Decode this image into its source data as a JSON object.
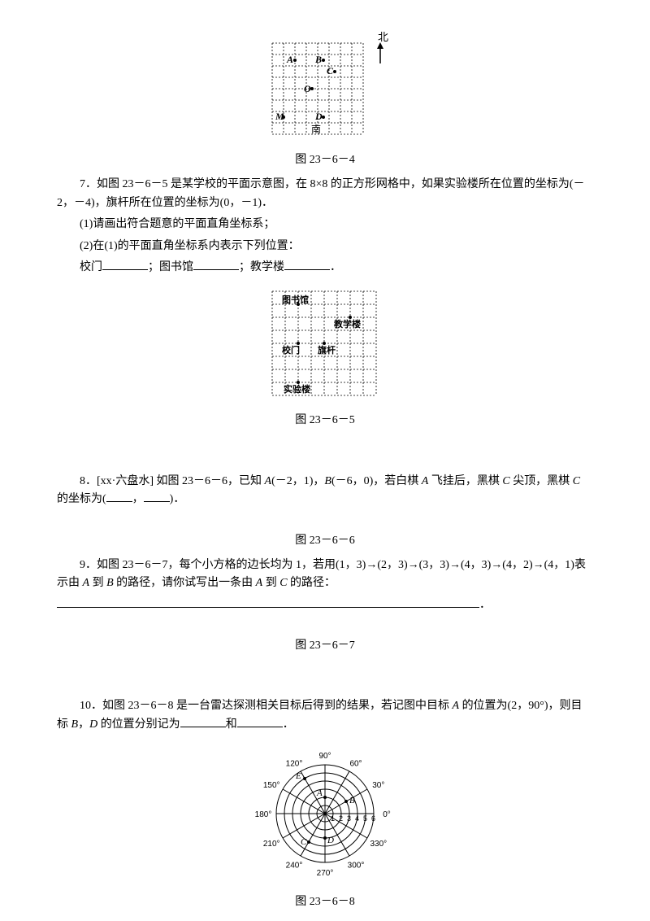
{
  "fig1": {
    "caption": "图 23－6－4",
    "north": "北",
    "south": "南",
    "labels": {
      "A": "A",
      "B": "B",
      "C": "C",
      "O": "O",
      "M": "M",
      "D": "D"
    },
    "size": 120,
    "cells": 8,
    "grid_color": "#000000",
    "bg": "#ffffff"
  },
  "q7": {
    "line1": "7．如图 23－6－5 是某学校的平面示意图，在 8×8 的正方形网格中，如果实验楼所在位置的坐标为(－2，－4)，旗杆所在位置的坐标为(0，－1)．",
    "sub1": "(1)请画出符合题意的平面直角坐标系；",
    "sub2_a": "(2)在(1)的平面直角坐标系内表示下列位置：",
    "sub2_b1": "校门",
    "sub2_b2": "；图书馆",
    "sub2_b3": "；教学楼",
    "sub2_b4": "．"
  },
  "fig2": {
    "caption": "图 23－6－5",
    "labels": {
      "lib": "图书馆",
      "teach": "教学楼",
      "gate": "校门",
      "flag": "旗杆",
      "lab": "实验楼"
    },
    "size": 140,
    "cells": 8
  },
  "q8": {
    "prefix": "8．[xx·六盘水] 如图 23－6－6，已知 ",
    "A": "A",
    "Acoord": "(－2，1)，",
    "B": "B",
    "Bcoord": "(－6，0)，若白棋 ",
    "A2": "A",
    "mid": " 飞挂后，黑棋 ",
    "C": "C",
    "mid2": " 尖顶，黑棋 ",
    "C2": "C",
    "tail": " 的坐标为(",
    "comma": "，",
    "closep": ")．"
  },
  "fig3_caption": "图 23－6－6",
  "q9": {
    "prefix": "9．如图 23－6－7，每个小方格的边长均为 1，若用(1，3)→(2，3)→(3，3)→(4，3)→(4，2)→(4，1)表示由 ",
    "A": "A",
    "mid": " 到 ",
    "B": "B",
    "mid2": " 的路径，请你试写出一条由 ",
    "A2": "A",
    "mid3": " 到 ",
    "C": "C",
    "tail": " 的路径：",
    "period": "．"
  },
  "fig4_caption": "图 23－6－7",
  "q10": {
    "prefix": "10．如图 23－6－8 是一台雷达探测相关目标后得到的结果，若记图中目标 ",
    "A": "A",
    "mid": " 的位置为(2，90°)，则目标 ",
    "B": "B",
    "comma": "，",
    "D": "D",
    "mid2": " 的位置分别记为",
    "and": "和",
    "period": "．"
  },
  "radar": {
    "caption": "图 23－6－8",
    "angles": [
      "0°",
      "30°",
      "60°",
      "90°",
      "120°",
      "150°",
      "180°",
      "210°",
      "240°",
      "270°",
      "300°",
      "330°"
    ],
    "rings": [
      1,
      2,
      3,
      4,
      5,
      6
    ],
    "ring_labels": [
      "1",
      "2",
      "3",
      "4",
      "5",
      "6"
    ],
    "targets": {
      "A": "A",
      "B": "B",
      "C": "C",
      "D": "D",
      "E": "E"
    },
    "size": 180,
    "line_color": "#000000",
    "font_size": 10
  }
}
